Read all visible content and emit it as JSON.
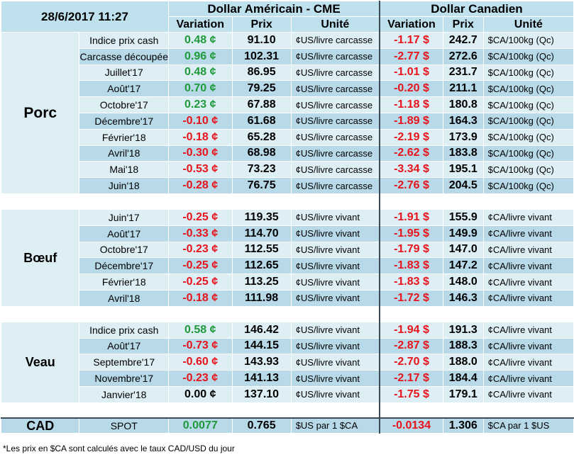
{
  "header": {
    "datetime": "28/6/2017 11:27",
    "usd_group": "Dollar Américain - CME",
    "cad_group": "Dollar Canadien",
    "col_variation": "Variation",
    "col_prix": "Prix",
    "col_unite": "Unité"
  },
  "colors": {
    "positive": "#1f9a3a",
    "negative": "#e8131b",
    "band_light": "#ddeef5",
    "band_dark": "#b7d9e8"
  },
  "sections": [
    {
      "category": "Porc",
      "rows": [
        {
          "label": "Indice prix cash",
          "usd_var": "0.48 ¢",
          "usd_price": "91.10",
          "usd_unit": "¢US/livre carcasse",
          "cad_var": "-1.17 $",
          "cad_price": "242.7",
          "cad_unit": "$CA/100kg (Qc)"
        },
        {
          "label": "Carcasse découpée",
          "usd_var": "0.96 ¢",
          "usd_price": "102.31",
          "usd_unit": "¢US/livre carcasse",
          "cad_var": "-2.77 $",
          "cad_price": "272.6",
          "cad_unit": "$CA/100kg (Qc)"
        },
        {
          "label": "Juillet'17",
          "usd_var": "0.48 ¢",
          "usd_price": "86.95",
          "usd_unit": "¢US/livre carcasse",
          "cad_var": "-1.01 $",
          "cad_price": "231.7",
          "cad_unit": "$CA/100kg (Qc)"
        },
        {
          "label": "Août'17",
          "usd_var": "0.70 ¢",
          "usd_price": "79.25",
          "usd_unit": "¢US/livre carcasse",
          "cad_var": "-0.20 $",
          "cad_price": "211.1",
          "cad_unit": "$CA/100kg (Qc)"
        },
        {
          "label": "Octobre'17",
          "usd_var": "0.23 ¢",
          "usd_price": "67.88",
          "usd_unit": "¢US/livre carcasse",
          "cad_var": "-1.18 $",
          "cad_price": "180.8",
          "cad_unit": "$CA/100kg (Qc)"
        },
        {
          "label": "Décembre'17",
          "usd_var": "-0.10 ¢",
          "usd_price": "61.68",
          "usd_unit": "¢US/livre carcasse",
          "cad_var": "-1.89 $",
          "cad_price": "164.3",
          "cad_unit": "$CA/100kg (Qc)"
        },
        {
          "label": "Février'18",
          "usd_var": "-0.18 ¢",
          "usd_price": "65.28",
          "usd_unit": "¢US/livre carcasse",
          "cad_var": "-2.19 $",
          "cad_price": "173.9",
          "cad_unit": "$CA/100kg (Qc)"
        },
        {
          "label": "Avril'18",
          "usd_var": "-0.30 ¢",
          "usd_price": "68.98",
          "usd_unit": "¢US/livre carcasse",
          "cad_var": "-2.62 $",
          "cad_price": "183.8",
          "cad_unit": "$CA/100kg (Qc)"
        },
        {
          "label": "Mai'18",
          "usd_var": "-0.53 ¢",
          "usd_price": "73.23",
          "usd_unit": "¢US/livre carcasse",
          "cad_var": "-3.34 $",
          "cad_price": "195.1",
          "cad_unit": "$CA/100kg (Qc)"
        },
        {
          "label": "Juin'18",
          "usd_var": "-0.28 ¢",
          "usd_price": "76.75",
          "usd_unit": "¢US/livre carcasse",
          "cad_var": "-2.76 $",
          "cad_price": "204.5",
          "cad_unit": "$CA/100kg (Qc)"
        }
      ]
    },
    {
      "category": "Bœuf",
      "rows": [
        {
          "label": "Juin'17",
          "usd_var": "-0.25 ¢",
          "usd_price": "119.35",
          "usd_unit": "¢US/livre vivant",
          "cad_var": "-1.91 $",
          "cad_price": "155.9",
          "cad_unit": "¢CA/livre vivant"
        },
        {
          "label": "Août'17",
          "usd_var": "-0.33 ¢",
          "usd_price": "114.70",
          "usd_unit": "¢US/livre vivant",
          "cad_var": "-1.95 $",
          "cad_price": "149.9",
          "cad_unit": "¢CA/livre vivant"
        },
        {
          "label": "Octobre'17",
          "usd_var": "-0.23 ¢",
          "usd_price": "112.55",
          "usd_unit": "¢US/livre vivant",
          "cad_var": "-1.79 $",
          "cad_price": "147.0",
          "cad_unit": "¢CA/livre vivant"
        },
        {
          "label": "Décembre'17",
          "usd_var": "-0.25 ¢",
          "usd_price": "112.65",
          "usd_unit": "¢US/livre vivant",
          "cad_var": "-1.83 $",
          "cad_price": "147.2",
          "cad_unit": "¢CA/livre vivant"
        },
        {
          "label": "Février'18",
          "usd_var": "-0.25 ¢",
          "usd_price": "113.25",
          "usd_unit": "¢US/livre vivant",
          "cad_var": "-1.83 $",
          "cad_price": "148.0",
          "cad_unit": "¢CA/livre vivant"
        },
        {
          "label": "Avril'18",
          "usd_var": "-0.18 ¢",
          "usd_price": "111.98",
          "usd_unit": "¢US/livre vivant",
          "cad_var": "-1.72 $",
          "cad_price": "146.3",
          "cad_unit": "¢CA/livre vivant"
        }
      ]
    },
    {
      "category": "Veau",
      "rows": [
        {
          "label": "Indice prix cash",
          "usd_var": "0.58 ¢",
          "usd_price": "146.42",
          "usd_unit": "¢US/livre vivant",
          "cad_var": "-1.94 $",
          "cad_price": "191.3",
          "cad_unit": "¢CA/livre vivant"
        },
        {
          "label": "Août'17",
          "usd_var": "-0.73 ¢",
          "usd_price": "144.15",
          "usd_unit": "¢US/livre vivant",
          "cad_var": "-2.87 $",
          "cad_price": "188.3",
          "cad_unit": "¢CA/livre vivant"
        },
        {
          "label": "Septembre'17",
          "usd_var": "-0.60 ¢",
          "usd_price": "143.93",
          "usd_unit": "¢US/livre vivant",
          "cad_var": "-2.70 $",
          "cad_price": "188.0",
          "cad_unit": "¢CA/livre vivant"
        },
        {
          "label": "Novembre'17",
          "usd_var": "-0.23 ¢",
          "usd_price": "141.13",
          "usd_unit": "¢US/livre vivant",
          "cad_var": "-2.17 $",
          "cad_price": "184.4",
          "cad_unit": "¢CA/livre vivant"
        },
        {
          "label": "Janvier'18",
          "usd_var": "0.00 ¢",
          "usd_price": "137.10",
          "usd_unit": "¢US/livre vivant",
          "cad_var": "-1.75 $",
          "cad_price": "179.1",
          "cad_unit": "¢CA/livre vivant"
        }
      ]
    }
  ],
  "cad": {
    "category": "CAD",
    "label": "SPOT",
    "usd_var": "0.0077",
    "usd_price": "0.765",
    "usd_unit": "$US par 1 $CA",
    "cad_var": "-0.0134",
    "cad_price": "1.306",
    "cad_unit": "$CA par 1 $US"
  },
  "footnote": "*Les  prix en $CA sont calculés avec le taux CAD/USD du jour"
}
